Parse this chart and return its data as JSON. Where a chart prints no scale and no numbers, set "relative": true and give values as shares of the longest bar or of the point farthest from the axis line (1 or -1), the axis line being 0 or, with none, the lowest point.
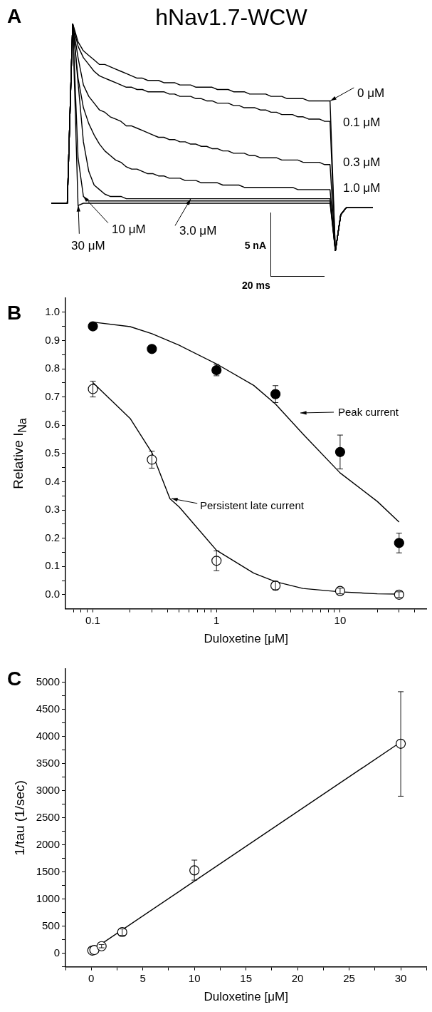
{
  "chart_data": [
    {
      "type": "line",
      "title": "hNav1.7-WCW",
      "legend": "right",
      "relative": true,
      "tick_labels": false,
      "marker": "none",
      "line_style": "solid",
      "annotations": [
        "A",
        "5 nA",
        "20 ms"
      ],
      "categories": [
        null,
        null,
        null,
        null,
        null,
        null,
        null,
        null,
        null,
        null,
        null,
        null,
        null,
        null,
        null,
        null,
        null,
        null,
        null,
        null,
        null,
        null,
        null,
        null,
        null,
        null,
        null,
        null,
        null,
        null,
        null,
        null,
        null,
        null,
        null,
        null,
        null,
        null,
        null,
        null,
        null,
        null,
        null,
        null,
        null,
        null,
        null,
        null,
        null,
        null,
        null,
        null,
        null,
        null,
        null,
        null,
        null,
        null,
        null,
        null,
        null
      ],
      "series": [
        {
          "name": "0 μM",
          "color": "#000000",
          "values": [
            0.21,
            0.21,
            0.21,
            0.21,
            1.0,
            0.92,
            0.88,
            0.86,
            0.84,
            0.82,
            0.82,
            0.81,
            0.8,
            0.79,
            0.78,
            0.77,
            0.76,
            0.76,
            0.75,
            0.75,
            0.75,
            0.74,
            0.74,
            0.74,
            0.73,
            0.73,
            0.73,
            0.72,
            0.72,
            0.72,
            0.72,
            0.71,
            0.71,
            0.71,
            0.7,
            0.7,
            0.7,
            0.69,
            0.69,
            0.69,
            0.69,
            0.68,
            0.68,
            0.68,
            0.67,
            0.67,
            0.67,
            0.67,
            0.66,
            0.66,
            0.66,
            0.66,
            0.66,
            0.0,
            0.16,
            0.19,
            0.19,
            0.19,
            0.19,
            0.19,
            0.19
          ]
        },
        {
          "name": "0.1 μM",
          "color": "#000000",
          "values": [
            0.21,
            0.21,
            0.21,
            0.21,
            1.0,
            0.9,
            0.85,
            0.82,
            0.79,
            0.77,
            0.76,
            0.75,
            0.74,
            0.73,
            0.72,
            0.72,
            0.71,
            0.71,
            0.7,
            0.7,
            0.7,
            0.7,
            0.69,
            0.69,
            0.68,
            0.68,
            0.68,
            0.67,
            0.67,
            0.66,
            0.66,
            0.65,
            0.65,
            0.65,
            0.64,
            0.64,
            0.63,
            0.63,
            0.63,
            0.62,
            0.62,
            0.61,
            0.61,
            0.6,
            0.6,
            0.6,
            0.59,
            0.59,
            0.58,
            0.58,
            0.58,
            0.57,
            0.57,
            0.0,
            0.16,
            0.19,
            0.19,
            0.19,
            0.19,
            0.19,
            0.19
          ]
        },
        {
          "name": "0.3 μM",
          "color": "#000000",
          "values": [
            0.21,
            0.21,
            0.21,
            0.21,
            1.0,
            0.85,
            0.73,
            0.68,
            0.65,
            0.62,
            0.61,
            0.59,
            0.58,
            0.57,
            0.55,
            0.55,
            0.54,
            0.53,
            0.52,
            0.51,
            0.5,
            0.5,
            0.49,
            0.49,
            0.48,
            0.48,
            0.47,
            0.47,
            0.46,
            0.46,
            0.45,
            0.45,
            0.44,
            0.44,
            0.43,
            0.43,
            0.43,
            0.42,
            0.42,
            0.41,
            0.41,
            0.41,
            0.41,
            0.4,
            0.4,
            0.4,
            0.4,
            0.39,
            0.39,
            0.39,
            0.39,
            0.38,
            0.38,
            0.0,
            0.16,
            0.19,
            0.19,
            0.19,
            0.19,
            0.19,
            0.19
          ]
        },
        {
          "name": "1.0 μM",
          "color": "#000000",
          "values": [
            0.21,
            0.21,
            0.21,
            0.21,
            1.0,
            0.76,
            0.63,
            0.56,
            0.51,
            0.47,
            0.44,
            0.42,
            0.4,
            0.39,
            0.37,
            0.36,
            0.36,
            0.35,
            0.34,
            0.34,
            0.33,
            0.33,
            0.32,
            0.32,
            0.32,
            0.31,
            0.31,
            0.31,
            0.3,
            0.3,
            0.3,
            0.3,
            0.29,
            0.29,
            0.29,
            0.29,
            0.28,
            0.28,
            0.28,
            0.28,
            0.28,
            0.28,
            0.28,
            0.28,
            0.28,
            0.28,
            0.27,
            0.27,
            0.27,
            0.27,
            0.27,
            0.27,
            0.27,
            0.0,
            0.16,
            0.19,
            0.19,
            0.19,
            0.19,
            0.19,
            0.19
          ]
        },
        {
          "name": "3.0 μM",
          "color": "#000000",
          "values": [
            0.21,
            0.21,
            0.21,
            0.21,
            1.0,
            0.74,
            0.48,
            0.35,
            0.29,
            0.27,
            0.25,
            0.24,
            0.24,
            0.24,
            0.23,
            0.23,
            0.23,
            0.23,
            0.23,
            0.23,
            0.23,
            0.23,
            0.23,
            0.23,
            0.23,
            0.23,
            0.23,
            0.23,
            0.23,
            0.23,
            0.23,
            0.23,
            0.23,
            0.23,
            0.23,
            0.23,
            0.23,
            0.23,
            0.23,
            0.23,
            0.23,
            0.23,
            0.23,
            0.23,
            0.23,
            0.23,
            0.23,
            0.23,
            0.23,
            0.23,
            0.23,
            0.23,
            0.23,
            0.0,
            0.16,
            0.19,
            0.19,
            0.19,
            0.19,
            0.19,
            0.19
          ]
        },
        {
          "name": "10 μM",
          "color": "#000000",
          "values": [
            0.21,
            0.21,
            0.21,
            0.21,
            1.0,
            0.41,
            0.24,
            0.22,
            0.22,
            0.22,
            0.22,
            0.22,
            0.22,
            0.22,
            0.22,
            0.22,
            0.22,
            0.22,
            0.22,
            0.22,
            0.22,
            0.22,
            0.22,
            0.22,
            0.22,
            0.22,
            0.22,
            0.22,
            0.22,
            0.22,
            0.22,
            0.22,
            0.22,
            0.22,
            0.22,
            0.22,
            0.22,
            0.22,
            0.22,
            0.22,
            0.22,
            0.22,
            0.22,
            0.22,
            0.22,
            0.22,
            0.22,
            0.22,
            0.22,
            0.22,
            0.22,
            0.22,
            0.22,
            0.0,
            0.16,
            0.19,
            0.19,
            0.19,
            0.19,
            0.19,
            0.19
          ]
        },
        {
          "name": "30 μM",
          "color": "#000000",
          "values": [
            0.21,
            0.21,
            0.21,
            0.21,
            1.0,
            0.2,
            0.21,
            0.21,
            0.21,
            0.21,
            0.21,
            0.21,
            0.21,
            0.21,
            0.21,
            0.21,
            0.21,
            0.21,
            0.21,
            0.21,
            0.21,
            0.21,
            0.21,
            0.21,
            0.21,
            0.21,
            0.21,
            0.21,
            0.21,
            0.21,
            0.21,
            0.21,
            0.21,
            0.21,
            0.21,
            0.21,
            0.21,
            0.21,
            0.21,
            0.21,
            0.21,
            0.21,
            0.21,
            0.21,
            0.21,
            0.21,
            0.21,
            0.21,
            0.21,
            0.21,
            0.21,
            0.21,
            0.21,
            0.0,
            0.16,
            0.19,
            0.19,
            0.19,
            0.19,
            0.19,
            0.19
          ]
        }
      ]
    },
    {
      "type": "scatter",
      "xlabel": "Duloxetine [μM]",
      "ylabel": "Relative I$_{Na}$",
      "log": "x",
      "marker": "circle",
      "annotations": [
        "B",
        "Peak current",
        {
          "text": "Persistent late current",
          "x": 0.42,
          "y": 0.34
        }
      ],
      "xlim": [
        0.06,
        50
      ],
      "xticks": [
        {
          "value": 0.07,
          "label": null
        },
        {
          "value": 0.08,
          "label": null
        },
        {
          "value": 0.09,
          "label": null
        },
        0.1,
        {
          "value": 0.2,
          "label": null
        },
        {
          "value": 0.3,
          "label": null
        },
        {
          "value": 0.4,
          "label": null
        },
        {
          "value": 0.5,
          "label": null
        },
        {
          "value": 0.6,
          "label": null
        },
        {
          "value": 0.7,
          "label": null
        },
        {
          "value": 0.8,
          "label": null
        },
        {
          "value": 0.9,
          "label": null
        },
        1,
        {
          "value": 2,
          "label": null
        },
        {
          "value": 3,
          "label": null
        },
        {
          "value": 4,
          "label": null
        },
        {
          "value": 5,
          "label": null
        },
        {
          "value": 6,
          "label": null
        },
        {
          "value": 7,
          "label": null
        },
        {
          "value": 8,
          "label": null
        },
        {
          "value": 9,
          "label": null
        },
        10,
        {
          "value": 20,
          "label": null
        },
        {
          "value": 30,
          "label": null
        },
        {
          "value": 40,
          "label": null
        }
      ],
      "ylim": [
        -0.05,
        1.05
      ],
      "yticks": [
        {
          "value": 0,
          "label": "0.0"
        },
        {
          "value": 0.05,
          "label": null
        },
        0.1,
        {
          "value": 0.15,
          "label": null
        },
        0.2,
        {
          "value": 0.25,
          "label": null
        },
        0.3,
        {
          "value": 0.35,
          "label": null
        },
        0.4,
        {
          "value": 0.45,
          "label": null
        },
        0.5,
        {
          "value": 0.55,
          "label": null
        },
        0.6,
        {
          "value": 0.65,
          "label": null
        },
        0.7,
        {
          "value": 0.75,
          "label": null
        },
        0.8,
        {
          "value": 0.85,
          "label": null
        },
        0.9,
        {
          "value": 0.95,
          "label": null
        },
        {
          "value": 1,
          "label": "1.0"
        }
      ],
      "series": [
        {
          "color": "#000000",
          "x": [
            0.1,
            0.3,
            1,
            3,
            10,
            30
          ],
          "values": [
            0.95,
            0.87,
            0.795,
            0.71,
            0.505,
            0.183
          ],
          "errors": [
            null,
            null,
            0.02,
            0.03,
            0.06,
            0.035
          ]
        },
        {
          "color": "#ffffff",
          "x": [
            0.1,
            0.3,
            1,
            3,
            10,
            30
          ],
          "values": [
            0.728,
            0.478,
            0.12,
            0.032,
            0.013,
            0.0
          ],
          "errors": [
            0.028,
            0.03,
            0.035,
            0.015,
            0.01,
            0.01
          ]
        },
        {
          "type": "line",
          "marker": "none",
          "color": "#000000",
          "x": [
            0.1,
            0.2,
            0.3,
            0.5,
            1,
            2,
            3,
            5,
            10,
            20,
            30
          ],
          "values": [
            0.965,
            0.949,
            0.924,
            0.883,
            0.817,
            0.741,
            0.675,
            0.569,
            0.431,
            0.33,
            0.257
          ]
        },
        {
          "type": "line",
          "marker": "none",
          "color": "#000000",
          "x": [
            0.1,
            0.2,
            0.3,
            0.42,
            0.5,
            1,
            2,
            3,
            5,
            10,
            20,
            30
          ],
          "values": [
            0.751,
            0.624,
            0.503,
            0.34,
            0.31,
            0.157,
            0.076,
            0.046,
            0.022,
            0.01,
            0.003,
            0.002
          ]
        }
      ]
    },
    {
      "type": "scatter",
      "xlabel": "Duloxetine [μM]",
      "ylabel": "1/tau (1/sec)",
      "marker": "circle",
      "annotations": [
        "C"
      ],
      "xlim": [
        -2.5,
        32.5
      ],
      "xticks": [
        {
          "value": -2.5,
          "label": null
        },
        0,
        {
          "value": 2.5,
          "label": null
        },
        5,
        {
          "value": 7.5,
          "label": null
        },
        10,
        {
          "value": 12.5,
          "label": null
        },
        15,
        {
          "value": 17.5,
          "label": null
        },
        20,
        {
          "value": 22.5,
          "label": null
        },
        25,
        {
          "value": 27.5,
          "label": null
        },
        30,
        {
          "value": 32.5,
          "label": null
        }
      ],
      "ylim": [
        -250,
        5250
      ],
      "yticks": [
        {
          "value": -250,
          "label": null
        },
        0,
        {
          "value": 250,
          "label": null
        },
        500,
        {
          "value": 750,
          "label": null
        },
        1000,
        {
          "value": 1250,
          "label": null
        },
        1500,
        {
          "value": 1750,
          "label": null
        },
        2000,
        {
          "value": 2250,
          "label": null
        },
        2500,
        {
          "value": 2750,
          "label": null
        },
        3000,
        {
          "value": 3250,
          "label": null
        },
        3500,
        {
          "value": 3750,
          "label": null
        },
        4000,
        {
          "value": 4250,
          "label": null
        },
        4500,
        {
          "value": 4750,
          "label": null
        },
        5000
      ],
      "series": [
        {
          "color": "#ffffff",
          "x": [
            0.1,
            0.3,
            1,
            3,
            10,
            30
          ],
          "values": [
            50,
            60,
            130,
            390,
            1530,
            3870
          ],
          "errors": [
            null,
            null,
            30,
            60,
            [
              1350,
              1720
            ],
            [
              2900,
              4830
            ]
          ]
        },
        {
          "type": "line",
          "marker": "none",
          "color": "#000000",
          "x": [
            0.1,
            30
          ],
          "values": [
            60,
            3900
          ]
        }
      ]
    }
  ]
}
